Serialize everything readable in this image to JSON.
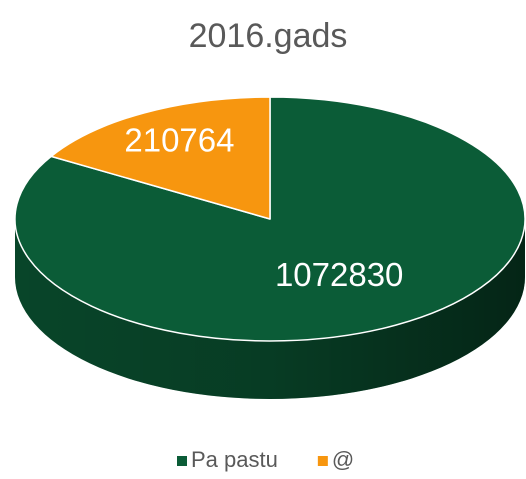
{
  "chart_data": {
    "type": "pie3d",
    "title": "2016.gads",
    "categories": [
      "Pa pastu",
      "@"
    ],
    "values": [
      1072830,
      210764
    ],
    "colors": [
      "#0b5c37",
      "#f7960f"
    ],
    "legend": "bottom"
  }
}
